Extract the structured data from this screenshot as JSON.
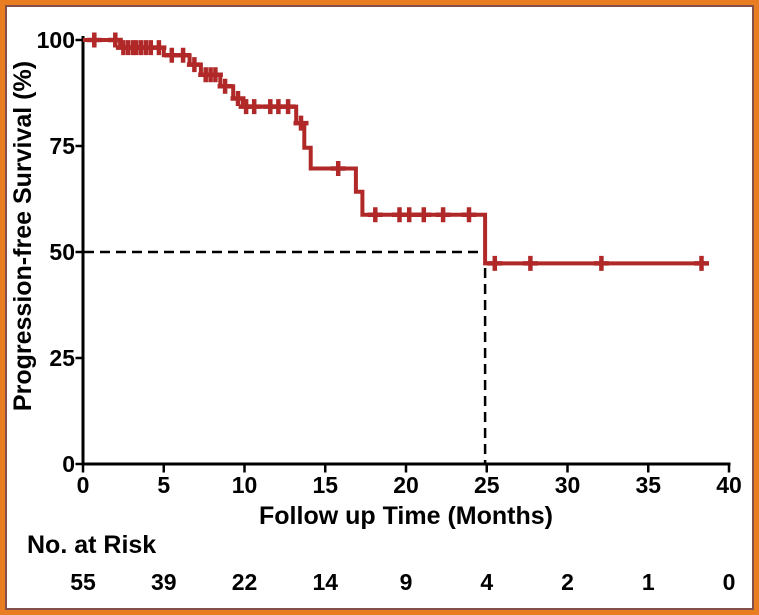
{
  "frame": {
    "border_color": "#E87D22",
    "inner_line_color": "#5A170C",
    "background": "#FFFFFF"
  },
  "chart_data": {
    "type": "line",
    "subtype": "kaplan-meier-step",
    "title": "",
    "xlabel": "Follow up Time (Months)",
    "ylabel": "Progression-free Survival (%)",
    "xlim": [
      0,
      40
    ],
    "ylim": [
      0,
      100
    ],
    "xticks": [
      0,
      5,
      10,
      15,
      20,
      25,
      30,
      35,
      40
    ],
    "yticks": [
      0,
      25,
      50,
      75,
      100
    ],
    "grid": "off",
    "legend": "none",
    "curve_color": "#B02828",
    "axis_color": "#000000",
    "steps_time_pct": [
      [
        0,
        100
      ],
      [
        2.3,
        98.2
      ],
      [
        5.0,
        96.4
      ],
      [
        6.6,
        94.2
      ],
      [
        7.3,
        91.8
      ],
      [
        8.5,
        89.1
      ],
      [
        9.3,
        86.2
      ],
      [
        9.9,
        84.3
      ],
      [
        13.2,
        80.4
      ],
      [
        13.7,
        74.6
      ],
      [
        14.1,
        69.7
      ],
      [
        16.9,
        64.2
      ],
      [
        17.3,
        58.8
      ],
      [
        24.9,
        47.3
      ]
    ],
    "end_time": 38.6,
    "censor_marks_time_pct": [
      [
        0.7,
        100
      ],
      [
        2.0,
        100
      ],
      [
        2.5,
        98.2
      ],
      [
        2.8,
        98.2
      ],
      [
        3.1,
        98.2
      ],
      [
        3.3,
        98.2
      ],
      [
        3.6,
        98.2
      ],
      [
        3.9,
        98.2
      ],
      [
        4.2,
        98.2
      ],
      [
        4.7,
        98.2
      ],
      [
        5.5,
        96.4
      ],
      [
        6.2,
        96.4
      ],
      [
        6.9,
        94.2
      ],
      [
        7.6,
        91.8
      ],
      [
        7.9,
        91.8
      ],
      [
        8.2,
        91.8
      ],
      [
        8.8,
        89.1
      ],
      [
        9.6,
        86.2
      ],
      [
        10.1,
        84.3
      ],
      [
        10.6,
        84.3
      ],
      [
        11.6,
        84.3
      ],
      [
        12.1,
        84.3
      ],
      [
        12.7,
        84.3
      ],
      [
        13.5,
        80.4
      ],
      [
        15.8,
        69.7
      ],
      [
        18.1,
        58.8
      ],
      [
        19.6,
        58.8
      ],
      [
        20.2,
        58.8
      ],
      [
        21.1,
        58.8
      ],
      [
        22.3,
        58.8
      ],
      [
        23.9,
        58.8
      ],
      [
        25.5,
        47.3
      ],
      [
        27.7,
        47.3
      ],
      [
        32.1,
        47.3
      ],
      [
        38.3,
        47.3
      ]
    ],
    "median_reference": {
      "survival_pct": 50,
      "time_months": 24.9,
      "line_style": "dashed",
      "line_color": "#000000"
    },
    "risk_table": {
      "label": "No. at Risk",
      "times": [
        0,
        5,
        10,
        15,
        20,
        25,
        30,
        35,
        40
      ],
      "values": [
        55,
        39,
        22,
        14,
        9,
        4,
        2,
        1,
        0
      ]
    }
  }
}
